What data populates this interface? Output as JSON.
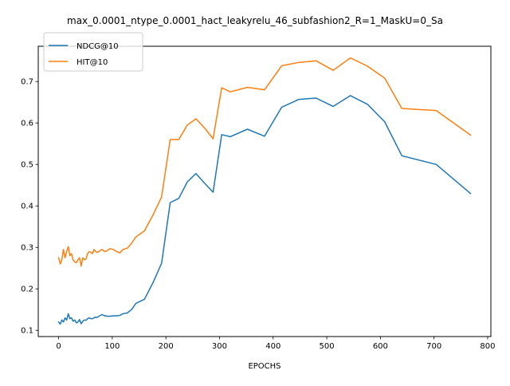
{
  "chart_data": {
    "type": "line",
    "title": "max_0.0001_ntype_0.0001_hact_leakyrelu_46_subfashion2_R=1_MaskU=0_Sa",
    "xlabel": "EPOCHS",
    "ylabel": "",
    "xlim": [
      -38,
      806
    ],
    "ylim": [
      0.085,
      0.785
    ],
    "xticks": [
      0,
      100,
      200,
      300,
      400,
      500,
      600,
      700,
      800
    ],
    "yticks": [
      0.1,
      0.2,
      0.3,
      0.4,
      0.5,
      0.6,
      0.7
    ],
    "grid": false,
    "legend_position": "upper-left",
    "series": [
      {
        "name": "NDCG@10",
        "color": "#1f77b4",
        "x": [
          0,
          3,
          6,
          9,
          12,
          15,
          18,
          21,
          24,
          27,
          30,
          33,
          36,
          39,
          42,
          45,
          48,
          51,
          54,
          57,
          60,
          63,
          66,
          69,
          72,
          75,
          78,
          81,
          84,
          87,
          90,
          96,
          102,
          108,
          114,
          120,
          128,
          136,
          144,
          160,
          176,
          192,
          208,
          224,
          240,
          256,
          272,
          288,
          304,
          320,
          352,
          384,
          416,
          448,
          480,
          512,
          544,
          576,
          608,
          640,
          704,
          768
        ],
        "y": [
          0.12,
          0.115,
          0.125,
          0.12,
          0.13,
          0.125,
          0.14,
          0.128,
          0.13,
          0.122,
          0.125,
          0.118,
          0.12,
          0.126,
          0.116,
          0.122,
          0.125,
          0.124,
          0.128,
          0.13,
          0.128,
          0.128,
          0.13,
          0.132,
          0.131,
          0.134,
          0.136,
          0.138,
          0.136,
          0.135,
          0.134,
          0.134,
          0.135,
          0.135,
          0.136,
          0.14,
          0.142,
          0.15,
          0.165,
          0.175,
          0.215,
          0.262,
          0.408,
          0.418,
          0.458,
          0.478,
          0.455,
          0.433,
          0.572,
          0.567,
          0.585,
          0.568,
          0.638,
          0.657,
          0.66,
          0.64,
          0.666,
          0.645,
          0.603,
          0.521,
          0.5,
          0.43
        ]
      },
      {
        "name": "HIT@10",
        "color": "#ff7f0e",
        "x": [
          0,
          3,
          6,
          9,
          12,
          15,
          18,
          21,
          24,
          27,
          30,
          33,
          36,
          39,
          42,
          45,
          48,
          51,
          54,
          57,
          60,
          63,
          66,
          69,
          72,
          75,
          78,
          81,
          84,
          87,
          90,
          96,
          102,
          108,
          114,
          120,
          128,
          136,
          144,
          160,
          176,
          192,
          208,
          224,
          240,
          256,
          272,
          288,
          304,
          320,
          352,
          384,
          416,
          448,
          480,
          512,
          544,
          576,
          608,
          640,
          704,
          768
        ],
        "y": [
          0.275,
          0.26,
          0.27,
          0.295,
          0.275,
          0.29,
          0.302,
          0.28,
          0.285,
          0.27,
          0.265,
          0.263,
          0.27,
          0.275,
          0.255,
          0.275,
          0.27,
          0.272,
          0.285,
          0.29,
          0.288,
          0.285,
          0.295,
          0.29,
          0.288,
          0.29,
          0.293,
          0.295,
          0.292,
          0.29,
          0.292,
          0.297,
          0.295,
          0.29,
          0.287,
          0.295,
          0.298,
          0.31,
          0.325,
          0.34,
          0.378,
          0.422,
          0.56,
          0.56,
          0.595,
          0.61,
          0.588,
          0.562,
          0.685,
          0.675,
          0.686,
          0.68,
          0.738,
          0.746,
          0.75,
          0.727,
          0.757,
          0.737,
          0.708,
          0.635,
          0.63,
          0.571
        ]
      }
    ]
  }
}
